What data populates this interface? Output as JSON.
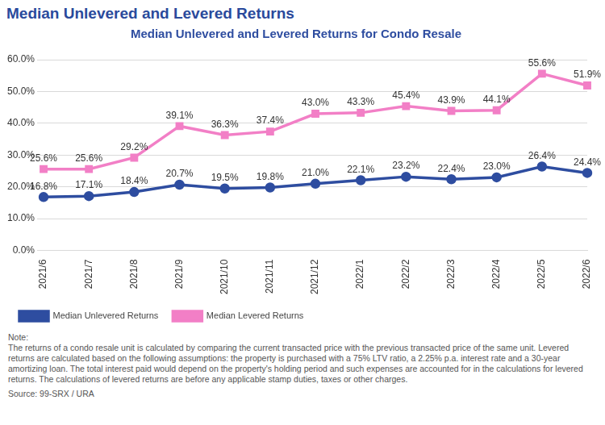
{
  "heading": "Median Unlevered and Levered Returns",
  "chart_data": {
    "type": "line",
    "title": "Median Unlevered and Levered Returns for Condo Resale",
    "categories": [
      "2021/6",
      "2021/7",
      "2021/8",
      "2021/9",
      "2021/10",
      "2021/11",
      "2021/12",
      "2022/1",
      "2022/2",
      "2022/3",
      "2022/4",
      "2022/5",
      "2022/6"
    ],
    "series": [
      {
        "name": "Median Unlevered Returns",
        "color": "#2e4da0",
        "marker": "circle",
        "line_style": "solid",
        "values": [
          16.8,
          17.1,
          18.4,
          20.7,
          19.5,
          19.8,
          21.0,
          22.1,
          23.2,
          22.4,
          23.0,
          26.4,
          24.4
        ],
        "value_labels": [
          "16.8%",
          "17.1%",
          "18.4%",
          "20.7%",
          "19.5%",
          "19.8%",
          "21.0%",
          "22.1%",
          "23.2%",
          "22.4%",
          "23.0%",
          "26.4%",
          "24.4%"
        ]
      },
      {
        "name": "Median Levered Returns",
        "color": "#f27fc6",
        "marker": "square",
        "line_style": "solid",
        "values": [
          25.6,
          25.6,
          29.2,
          39.1,
          36.3,
          37.4,
          43.0,
          43.3,
          45.4,
          43.9,
          44.1,
          55.6,
          51.9
        ],
        "value_labels": [
          "25.6%",
          "25.6%",
          "29.2%",
          "39.1%",
          "36.3%",
          "37.4%",
          "43.0%",
          "43.3%",
          "45.4%",
          "43.9%",
          "44.1%",
          "55.6%",
          "51.9%"
        ]
      }
    ],
    "ylim": [
      0,
      60
    ],
    "yticks": [
      {
        "value": 0,
        "label": "0.0%"
      },
      {
        "value": 10,
        "label": "10.0%"
      },
      {
        "value": 20,
        "label": "20.0%"
      },
      {
        "value": 30,
        "label": "30.0%"
      },
      {
        "value": 40,
        "label": "40.0%"
      },
      {
        "value": 50,
        "label": "50.0%"
      },
      {
        "value": 60,
        "label": "60.0%"
      }
    ],
    "grid": true,
    "legend": "bottom-left",
    "data_labels": true
  },
  "note_label": "Note:",
  "note": "The returns of a condo resale unit is calculated by comparing the current transacted price with the previous transacted price of the same unit. Levered returns are calculated based on the following assumptions: the property is purchased with a 75% LTV ratio, a 2.25% p.a. interest rate and a 30-year amortizing loan. The total interest paid would depend on the property's holding period and such expenses are accounted for in the calculations for levered returns. The calculations of levered returns are before any applicable stamp duties, taxes or other charges.",
  "source": "Source: 99-SRX / URA"
}
